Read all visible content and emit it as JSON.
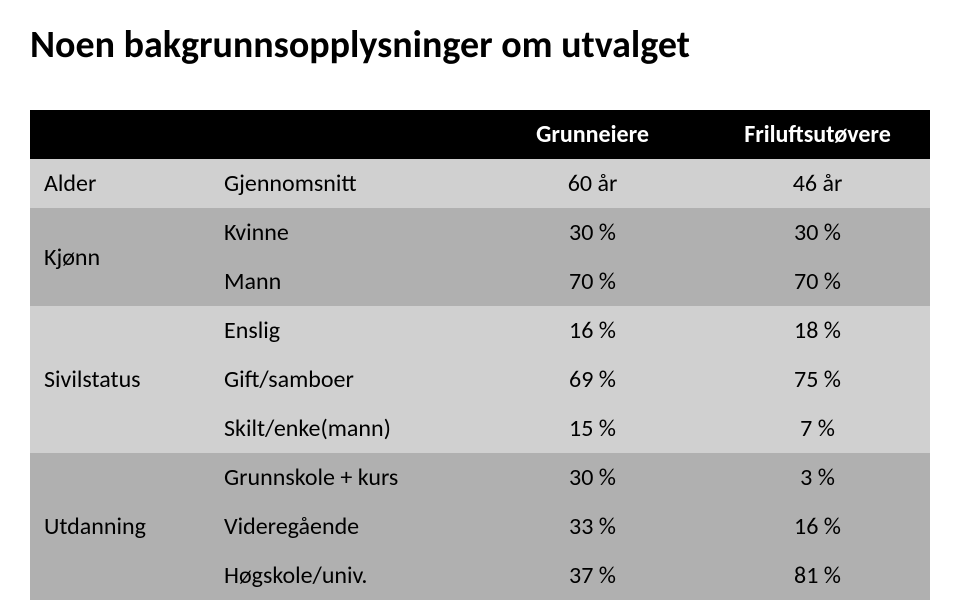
{
  "title": "Noen bakgrunnsopplysninger om utvalget",
  "headers": {
    "blank1": "",
    "blank2": "",
    "col1": "Grunneiere",
    "col2": "Friluftsutøvere"
  },
  "categories": {
    "alder": "Alder",
    "kjonn": "Kjønn",
    "sivilstatus": "Sivilstatus",
    "utdanning": "Utdanning"
  },
  "rows": {
    "gjennomsnitt": {
      "label": "Gjennomsnitt",
      "v1": "60 år",
      "v2": "46 år"
    },
    "kvinne": {
      "label": "Kvinne",
      "v1": "30 %",
      "v2": "30 %"
    },
    "mann": {
      "label": "Mann",
      "v1": "70 %",
      "v2": "70 %"
    },
    "enslig": {
      "label": "Enslig",
      "v1": "16 %",
      "v2": "18 %"
    },
    "gift": {
      "label": "Gift/samboer",
      "v1": "69 %",
      "v2": "75 %"
    },
    "skilt": {
      "label": "Skilt/enke(mann)",
      "v1": "15 %",
      "v2": "7 %"
    },
    "grunnskole": {
      "label": "Grunnskole + kurs",
      "v1": "30 %",
      "v2": "3 %"
    },
    "videregaende": {
      "label": "Videregående",
      "v1": "33 %",
      "v2": "16 %"
    },
    "hogskole": {
      "label": "Høgskole/univ.",
      "v1": "37 %",
      "v2": "81 %"
    }
  },
  "style": {
    "header_bg": "#000000",
    "header_fg": "#ffffff",
    "row_light": "#d0d0d0",
    "row_dark": "#b0b0b0",
    "title_fontsize": 38,
    "cell_fontsize": 24
  }
}
